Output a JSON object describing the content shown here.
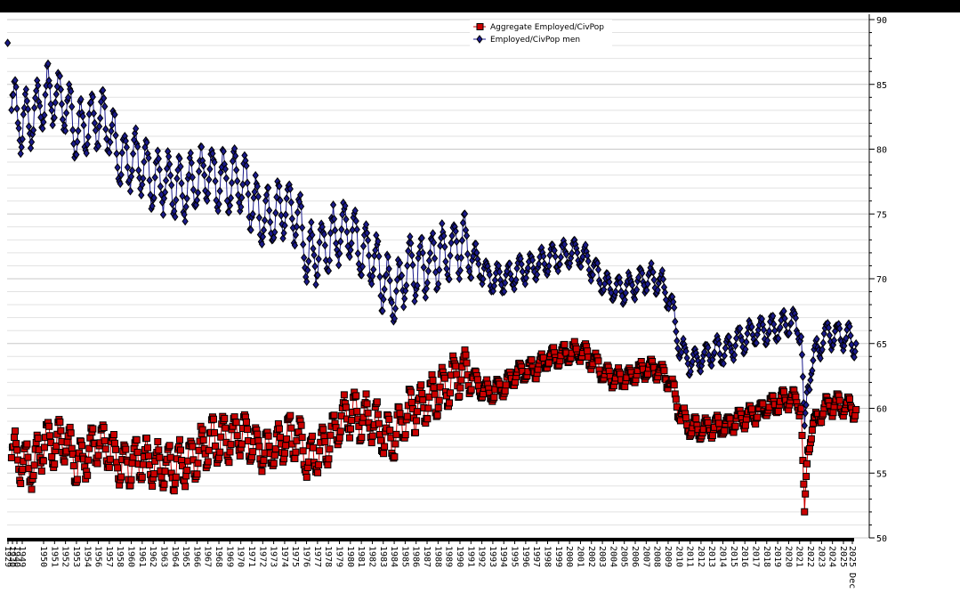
{
  "chart_data": {
    "type": "line",
    "title": "",
    "xlabel": "",
    "ylabel": "",
    "ylim": [
      50,
      90
    ],
    "y_ticks": [
      "50",
      "55",
      "60",
      "65",
      "70",
      "75",
      "80",
      "85",
      "90"
    ],
    "y_axis_side": "right",
    "grid": "horizontal",
    "legend_position": "top-center",
    "x_tick_labels": [
      "1929",
      "1930",
      "1940",
      "1949",
      "1950",
      "1951",
      "1952",
      "1953",
      "1954",
      "1956",
      "1957",
      "1958",
      "1960",
      "1961",
      "1962",
      "1963",
      "1964",
      "1965",
      "1966",
      "1967",
      "1968",
      "1969",
      "1970",
      "1971",
      "1972",
      "1973",
      "1974",
      "1975",
      "1976",
      "1977",
      "1978",
      "1979",
      "1980",
      "1981",
      "1982",
      "1983",
      "1984",
      "1985",
      "1986",
      "1987",
      "1988",
      "1989",
      "1990",
      "1991",
      "1992",
      "1993",
      "1994",
      "1995",
      "1996",
      "1997",
      "1998",
      "1999",
      "2000",
      "2001",
      "2002",
      "2003",
      "2004",
      "2005",
      "2006",
      "2007",
      "2008",
      "2009",
      "2010",
      "2011",
      "2012",
      "2013",
      "2014",
      "2015",
      "2016",
      "2017",
      "2018",
      "2019",
      "2020",
      "2021",
      "2022",
      "2023",
      "2024",
      "2025",
      "2025 Dec"
    ],
    "series": [
      {
        "name": "Aggregate Employed/CivPop",
        "color": "#cc0000",
        "marker": "square",
        "x": [
          1948,
          1949,
          1950,
          1951,
          1952,
          1953,
          1954,
          1955,
          1956,
          1957,
          1958,
          1959,
          1960,
          1961,
          1962,
          1963,
          1964,
          1965,
          1966,
          1967,
          1968,
          1969,
          1970,
          1971,
          1972,
          1973,
          1974,
          1975,
          1976,
          1977,
          1978,
          1979,
          1980,
          1981,
          1982,
          1983,
          1984,
          1985,
          1986,
          1987,
          1988,
          1989,
          1990,
          1991,
          1992,
          1993,
          1994,
          1995,
          1996,
          1997,
          1998,
          1999,
          2000,
          2001,
          2002,
          2003,
          2004,
          2005,
          2006,
          2007,
          2008,
          2009,
          2010,
          2011,
          2012,
          2013,
          2014,
          2015,
          2016,
          2017,
          2018,
          2019,
          2020,
          2020.3,
          2020.6,
          2021,
          2022,
          2023,
          2024,
          2025
        ],
        "values": [
          56.5,
          56.0,
          55.5,
          57.5,
          57.2,
          57.5,
          55.5,
          56.5,
          57.5,
          57.0,
          55.5,
          56.0,
          56.0,
          55.5,
          55.5,
          55.5,
          55.8,
          56.5,
          57.5,
          57.5,
          57.8,
          58.2,
          57.3,
          56.7,
          57.0,
          57.8,
          57.8,
          56.0,
          56.6,
          57.8,
          59.0,
          59.8,
          59.2,
          59.0,
          57.8,
          57.9,
          59.5,
          60.0,
          60.5,
          61.2,
          62.0,
          62.8,
          62.5,
          61.5,
          61.3,
          61.8,
          62.6,
          62.9,
          63.2,
          63.9,
          64.1,
          64.3,
          64.4,
          63.7,
          62.7,
          62.3,
          62.3,
          62.7,
          63.1,
          63.0,
          62.2,
          59.5,
          58.5,
          58.4,
          58.6,
          58.6,
          59.0,
          59.3,
          59.7,
          60.1,
          60.4,
          60.8,
          60.2,
          51.3,
          57.0,
          58.5,
          60.0,
          60.3,
          60.2,
          59.9
        ]
      },
      {
        "name": "Employed/CivPop men",
        "color": "#1a1a8c",
        "marker": "diamond",
        "x": [
          1948,
          1949,
          1950,
          1951,
          1952,
          1953,
          1954,
          1955,
          1956,
          1957,
          1958,
          1959,
          1960,
          1961,
          1962,
          1963,
          1964,
          1965,
          1966,
          1967,
          1968,
          1969,
          1970,
          1971,
          1972,
          1973,
          1974,
          1975,
          1976,
          1977,
          1978,
          1979,
          1980,
          1981,
          1982,
          1983,
          1984,
          1985,
          1986,
          1987,
          1988,
          1989,
          1990,
          1991,
          1992,
          1993,
          1994,
          1995,
          1996,
          1997,
          1998,
          1999,
          2000,
          2001,
          2002,
          2003,
          2004,
          2005,
          2006,
          2007,
          2008,
          2009,
          2010,
          2011,
          2012,
          2013,
          2014,
          2015,
          2016,
          2017,
          2018,
          2019,
          2020,
          2020.3,
          2020.6,
          2021,
          2022,
          2023,
          2024,
          2025
        ],
        "values": [
          83.5,
          82.0,
          82.5,
          84.0,
          84.0,
          83.5,
          81.0,
          82.0,
          82.5,
          81.5,
          79.0,
          79.5,
          78.5,
          77.5,
          77.5,
          77.0,
          77.0,
          77.5,
          78.0,
          77.5,
          77.5,
          77.5,
          76.0,
          74.7,
          75.0,
          75.5,
          75.0,
          71.5,
          72.0,
          72.8,
          73.5,
          73.5,
          72.0,
          71.5,
          69.5,
          68.8,
          70.8,
          70.8,
          71.0,
          71.8,
          72.3,
          72.8,
          72.0,
          70.5,
          70.0,
          70.0,
          70.4,
          70.8,
          71.1,
          71.6,
          71.7,
          71.9,
          71.9,
          70.9,
          69.7,
          69.1,
          69.2,
          69.6,
          70.1,
          69.8,
          68.6,
          64.5,
          63.5,
          63.9,
          64.4,
          64.4,
          65.0,
          65.5,
          65.9,
          66.0,
          66.3,
          66.7,
          66.0,
          57.5,
          62.0,
          63.5,
          65.5,
          65.7,
          65.5,
          65.0
        ]
      }
    ]
  }
}
